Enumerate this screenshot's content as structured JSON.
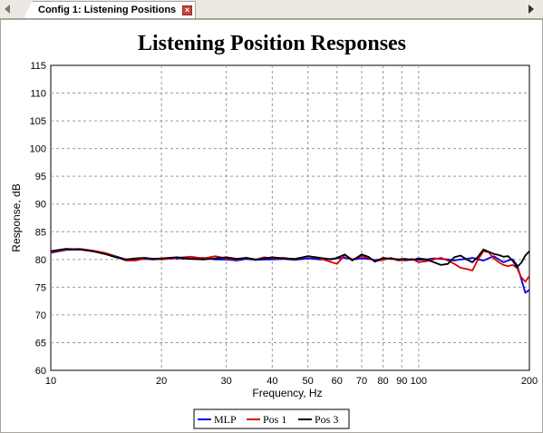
{
  "tab": {
    "label": "Config 1: Listening Positions",
    "close_glyph": "×"
  },
  "icons": {
    "tab_scroll_left": "chevron-left-icon",
    "tab_scroll_right": "chevron-right-icon",
    "tab_close": "close-icon"
  },
  "colors": {
    "mlp": "#0000dd",
    "pos1": "#dd0000",
    "pos3": "#000000",
    "grid": "#9a9a9a"
  },
  "chart_data": {
    "type": "line",
    "title": "Listening Position Responses",
    "xlabel": "Frequency, Hz",
    "ylabel": "Response, dB",
    "xscale": "log",
    "xlim": [
      10,
      200
    ],
    "ylim": [
      60,
      115
    ],
    "xticks": [
      10,
      20,
      30,
      40,
      50,
      60,
      70,
      80,
      90,
      100,
      200
    ],
    "yticks": [
      60,
      65,
      70,
      75,
      80,
      85,
      90,
      95,
      100,
      105,
      110,
      115
    ],
    "grid": true,
    "legend_position": "bottom-center",
    "series": [
      {
        "name": "MLP",
        "color": "#0000dd",
        "x": [
          10,
          11,
          12,
          13,
          14,
          15,
          16,
          17,
          18,
          19,
          20,
          22,
          24,
          26,
          28,
          30,
          32,
          34,
          36,
          38,
          40,
          43,
          46,
          50,
          54,
          58,
          60,
          63,
          66,
          70,
          73,
          76,
          80,
          84,
          88,
          92,
          96,
          100,
          105,
          110,
          115,
          120,
          125,
          130,
          135,
          140,
          145,
          150,
          155,
          160,
          165,
          170,
          175,
          180,
          185,
          190,
          195,
          200
        ],
        "y": [
          81.2,
          81.7,
          81.8,
          81.5,
          81.2,
          80.6,
          80.0,
          79.9,
          80.1,
          80.0,
          80.1,
          80.2,
          80.1,
          80.3,
          80.0,
          80.0,
          79.8,
          80.1,
          79.9,
          80.0,
          80.0,
          80.1,
          79.9,
          80.2,
          80.0,
          80.1,
          80.2,
          80.3,
          80.0,
          80.2,
          80.1,
          79.9,
          80.0,
          80.2,
          80.0,
          79.8,
          80.0,
          79.9,
          80.0,
          80.2,
          80.1,
          80.0,
          79.8,
          80.0,
          80.1,
          80.3,
          80.0,
          79.8,
          80.2,
          80.6,
          80.0,
          79.5,
          79.8,
          80.0,
          79.0,
          76.5,
          74.0,
          74.5
        ]
      },
      {
        "name": "Pos 1",
        "color": "#dd0000",
        "x": [
          10,
          11,
          12,
          13,
          14,
          15,
          16,
          17,
          18,
          19,
          20,
          22,
          24,
          26,
          28,
          30,
          32,
          34,
          36,
          38,
          40,
          43,
          46,
          50,
          54,
          58,
          60,
          63,
          66,
          70,
          73,
          76,
          80,
          84,
          88,
          92,
          96,
          100,
          105,
          110,
          115,
          120,
          125,
          130,
          135,
          140,
          145,
          150,
          155,
          160,
          165,
          170,
          175,
          180,
          185,
          190,
          195,
          200
        ],
        "y": [
          81.3,
          81.8,
          81.9,
          81.6,
          81.2,
          80.5,
          79.8,
          79.8,
          80.2,
          80.1,
          80.0,
          80.3,
          80.5,
          80.2,
          80.6,
          80.2,
          80.0,
          80.3,
          79.9,
          80.4,
          80.2,
          80.3,
          80.0,
          80.6,
          80.2,
          79.5,
          79.2,
          80.8,
          80.0,
          80.6,
          80.3,
          79.7,
          79.9,
          80.3,
          79.8,
          79.9,
          80.1,
          79.5,
          79.7,
          80.0,
          80.3,
          79.8,
          79.2,
          78.5,
          78.3,
          78.0,
          80.0,
          81.5,
          81.3,
          80.2,
          79.5,
          79.0,
          78.8,
          79.0,
          78.5,
          76.8,
          76.0,
          77.0
        ]
      },
      {
        "name": "Pos 3",
        "color": "#000000",
        "x": [
          10,
          11,
          12,
          13,
          14,
          15,
          16,
          17,
          18,
          19,
          20,
          22,
          24,
          26,
          28,
          30,
          32,
          34,
          36,
          38,
          40,
          43,
          46,
          50,
          54,
          58,
          60,
          63,
          66,
          70,
          73,
          76,
          80,
          84,
          88,
          92,
          96,
          100,
          105,
          110,
          115,
          120,
          125,
          130,
          135,
          140,
          145,
          150,
          155,
          160,
          165,
          170,
          175,
          180,
          185,
          190,
          195,
          200
        ],
        "y": [
          81.5,
          81.9,
          81.8,
          81.5,
          81.0,
          80.4,
          80.0,
          80.2,
          80.3,
          80.1,
          80.2,
          80.4,
          80.1,
          80.0,
          80.2,
          80.4,
          80.1,
          80.3,
          80.0,
          80.2,
          80.4,
          80.2,
          80.1,
          80.6,
          80.3,
          80.0,
          80.3,
          80.9,
          79.8,
          80.9,
          80.5,
          79.6,
          80.3,
          80.1,
          80.0,
          80.1,
          79.9,
          80.2,
          80.0,
          79.5,
          79.0,
          79.2,
          80.4,
          80.7,
          80.0,
          79.5,
          80.5,
          81.8,
          81.4,
          81.0,
          80.8,
          80.5,
          80.6,
          79.8,
          78.6,
          79.4,
          80.7,
          81.5
        ]
      }
    ]
  }
}
